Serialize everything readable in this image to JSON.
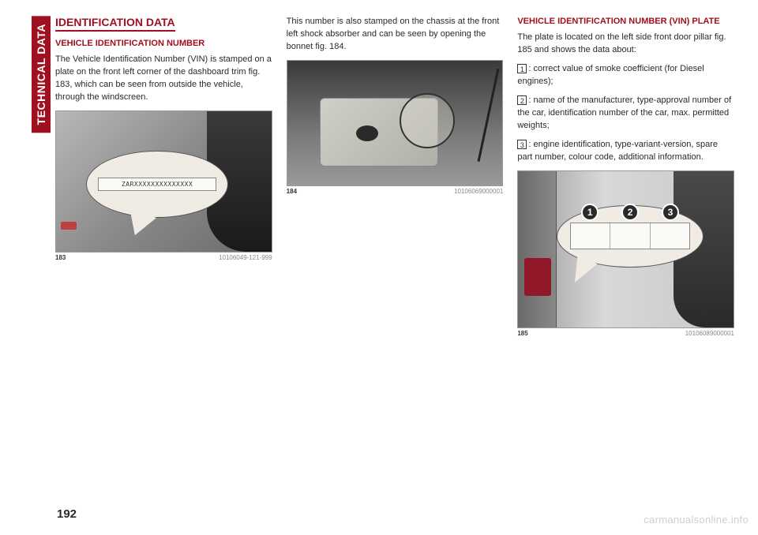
{
  "sidebar_tab": "TECHNICAL DATA",
  "page_number": "192",
  "watermark": "carmanualsonline.info",
  "col1": {
    "section_title": "IDENTIFICATION DATA",
    "sub_title": "VEHICLE IDENTIFICATION NUMBER",
    "body": "The Vehicle Identification Number (VIN) is stamped on a plate on the front left corner of the dashboard trim fig. 183, which can be seen from outside the vehicle, through the windscreen.",
    "vin_sample": "ZARXXXXXXXXXXXXXX",
    "fig_num": "183",
    "fig_code": "10106049-121-999"
  },
  "col2": {
    "body": "This number is also stamped on the chassis at the front left shock absorber and can be seen by opening the bonnet fig. 184.",
    "fig_num": "184",
    "fig_code": "10106069000001"
  },
  "col3": {
    "sub_title": "VEHICLE IDENTIFICATION NUMBER (VIN) PLATE",
    "body_intro": "The plate is located on the left side front door pillar fig. 185 and shows the data about:",
    "bullet1_num": "1",
    "bullet1_text": ": correct value of smoke coefficient (for Diesel engines);",
    "bullet2_num": "2",
    "bullet2_text": ": name of the manufacturer, type-approval number of the car, identification number of the car, max. permitted weights;",
    "bullet3_num": "3",
    "bullet3_text": ": engine identification, type-variant-version, spare part number, colour code, additional information.",
    "marker1": "1",
    "marker2": "2",
    "marker3": "3",
    "fig_num": "185",
    "fig_code": "10106089000001"
  }
}
